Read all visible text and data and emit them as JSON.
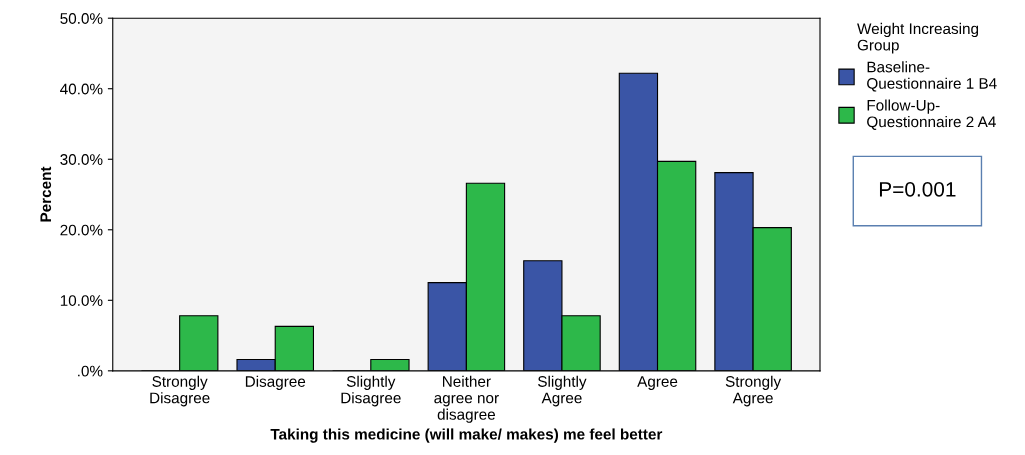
{
  "chart_data": {
    "type": "bar",
    "categories": [
      "Strongly\nDisagree",
      "Disagree",
      "Slightly\nDisagree",
      "Neither\nagree nor\ndisagree",
      "Slightly\nAgree",
      "Agree",
      "Strongly\nAgree"
    ],
    "series": [
      {
        "name": "Baseline-\nQuestionnaire 1 B4",
        "color": "#3a55a6",
        "values": [
          0,
          1.6,
          0,
          12.5,
          15.6,
          42.2,
          28.1
        ]
      },
      {
        "name": "Follow-Up-\nQuestionnaire 2 A4",
        "color": "#2db84a",
        "values": [
          7.8,
          6.3,
          1.6,
          26.6,
          7.8,
          29.7,
          20.3
        ]
      }
    ],
    "xlabel": "Taking this medicine (will make/ makes) me feel better",
    "ylabel": "Percent",
    "legend_title": "Weight Increasing\nGroup",
    "legend": "right",
    "ylim": [
      0,
      50
    ],
    "yticks": [
      {
        "value": 0,
        "label": ".0%"
      },
      {
        "value": 10,
        "label": "10.0%"
      },
      {
        "value": 20,
        "label": "20.0%"
      },
      {
        "value": 30,
        "label": "30.0%"
      },
      {
        "value": 40,
        "label": "40.0%"
      },
      {
        "value": 50,
        "label": "50.0%"
      }
    ],
    "grid": false,
    "annotations": [
      "P=0.001"
    ]
  }
}
